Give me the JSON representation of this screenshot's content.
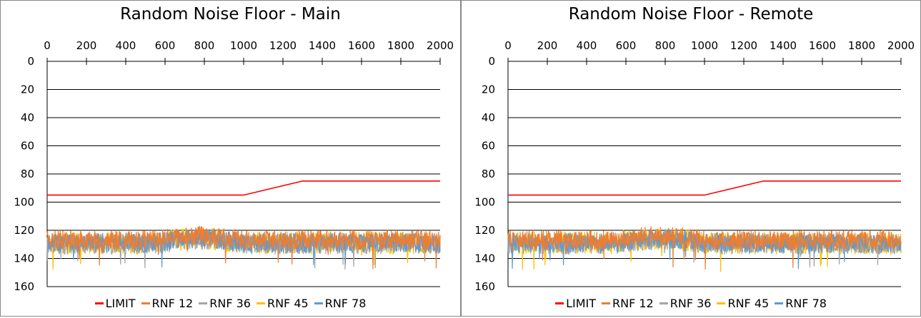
{
  "chart_data": [
    {
      "type": "line",
      "title": "Random Noise Floor - Main",
      "x_ticks": [
        "0",
        "200",
        "400",
        "600",
        "800",
        "1000",
        "1200",
        "1400",
        "1600",
        "1800",
        "2000"
      ],
      "y_ticks": [
        "0",
        "20",
        "40",
        "60",
        "80",
        "100",
        "120",
        "140",
        "160"
      ],
      "xlim": [
        0,
        2000
      ],
      "ylim": [
        0,
        160
      ],
      "y_reversed": true,
      "x_axis_position": "top",
      "grid": "horizontal",
      "legend_position": "bottom",
      "series": [
        {
          "name": "LIMIT",
          "color": "#ff0000",
          "x": [
            0,
            1000,
            1300,
            2000
          ],
          "y": [
            95,
            95,
            85,
            85
          ]
        },
        {
          "name": "RNF 12",
          "color": "#ed7d31",
          "baseline": 127,
          "amplitude": 7,
          "seed": 12
        },
        {
          "name": "RNF 36",
          "color": "#a5a5a5",
          "baseline": 130,
          "amplitude": 7,
          "seed": 36
        },
        {
          "name": "RNF 45",
          "color": "#ffc000",
          "baseline": 129,
          "amplitude": 8,
          "seed": 45
        },
        {
          "name": "RNF 78",
          "color": "#5b9bd5",
          "baseline": 129,
          "amplitude": 7,
          "seed": 78
        }
      ]
    },
    {
      "type": "line",
      "title": "Random Noise Floor - Remote",
      "x_ticks": [
        "0",
        "200",
        "400",
        "600",
        "800",
        "1000",
        "1200",
        "1400",
        "1600",
        "1800",
        "2000"
      ],
      "y_ticks": [
        "0",
        "20",
        "40",
        "60",
        "80",
        "100",
        "120",
        "140",
        "160"
      ],
      "xlim": [
        0,
        2000
      ],
      "ylim": [
        0,
        160
      ],
      "y_reversed": true,
      "x_axis_position": "top",
      "grid": "horizontal",
      "legend_position": "bottom",
      "series": [
        {
          "name": "LIMIT",
          "color": "#ff0000",
          "x": [
            0,
            1000,
            1300,
            2000
          ],
          "y": [
            95,
            95,
            85,
            85
          ]
        },
        {
          "name": "RNF 12",
          "color": "#ed7d31",
          "baseline": 127,
          "amplitude": 7,
          "seed": 112
        },
        {
          "name": "RNF 36",
          "color": "#a5a5a5",
          "baseline": 130,
          "amplitude": 7,
          "seed": 136
        },
        {
          "name": "RNF 45",
          "color": "#ffc000",
          "baseline": 129,
          "amplitude": 8,
          "seed": 145
        },
        {
          "name": "RNF 78",
          "color": "#5b9bd5",
          "baseline": 129,
          "amplitude": 7,
          "seed": 178
        }
      ]
    }
  ]
}
